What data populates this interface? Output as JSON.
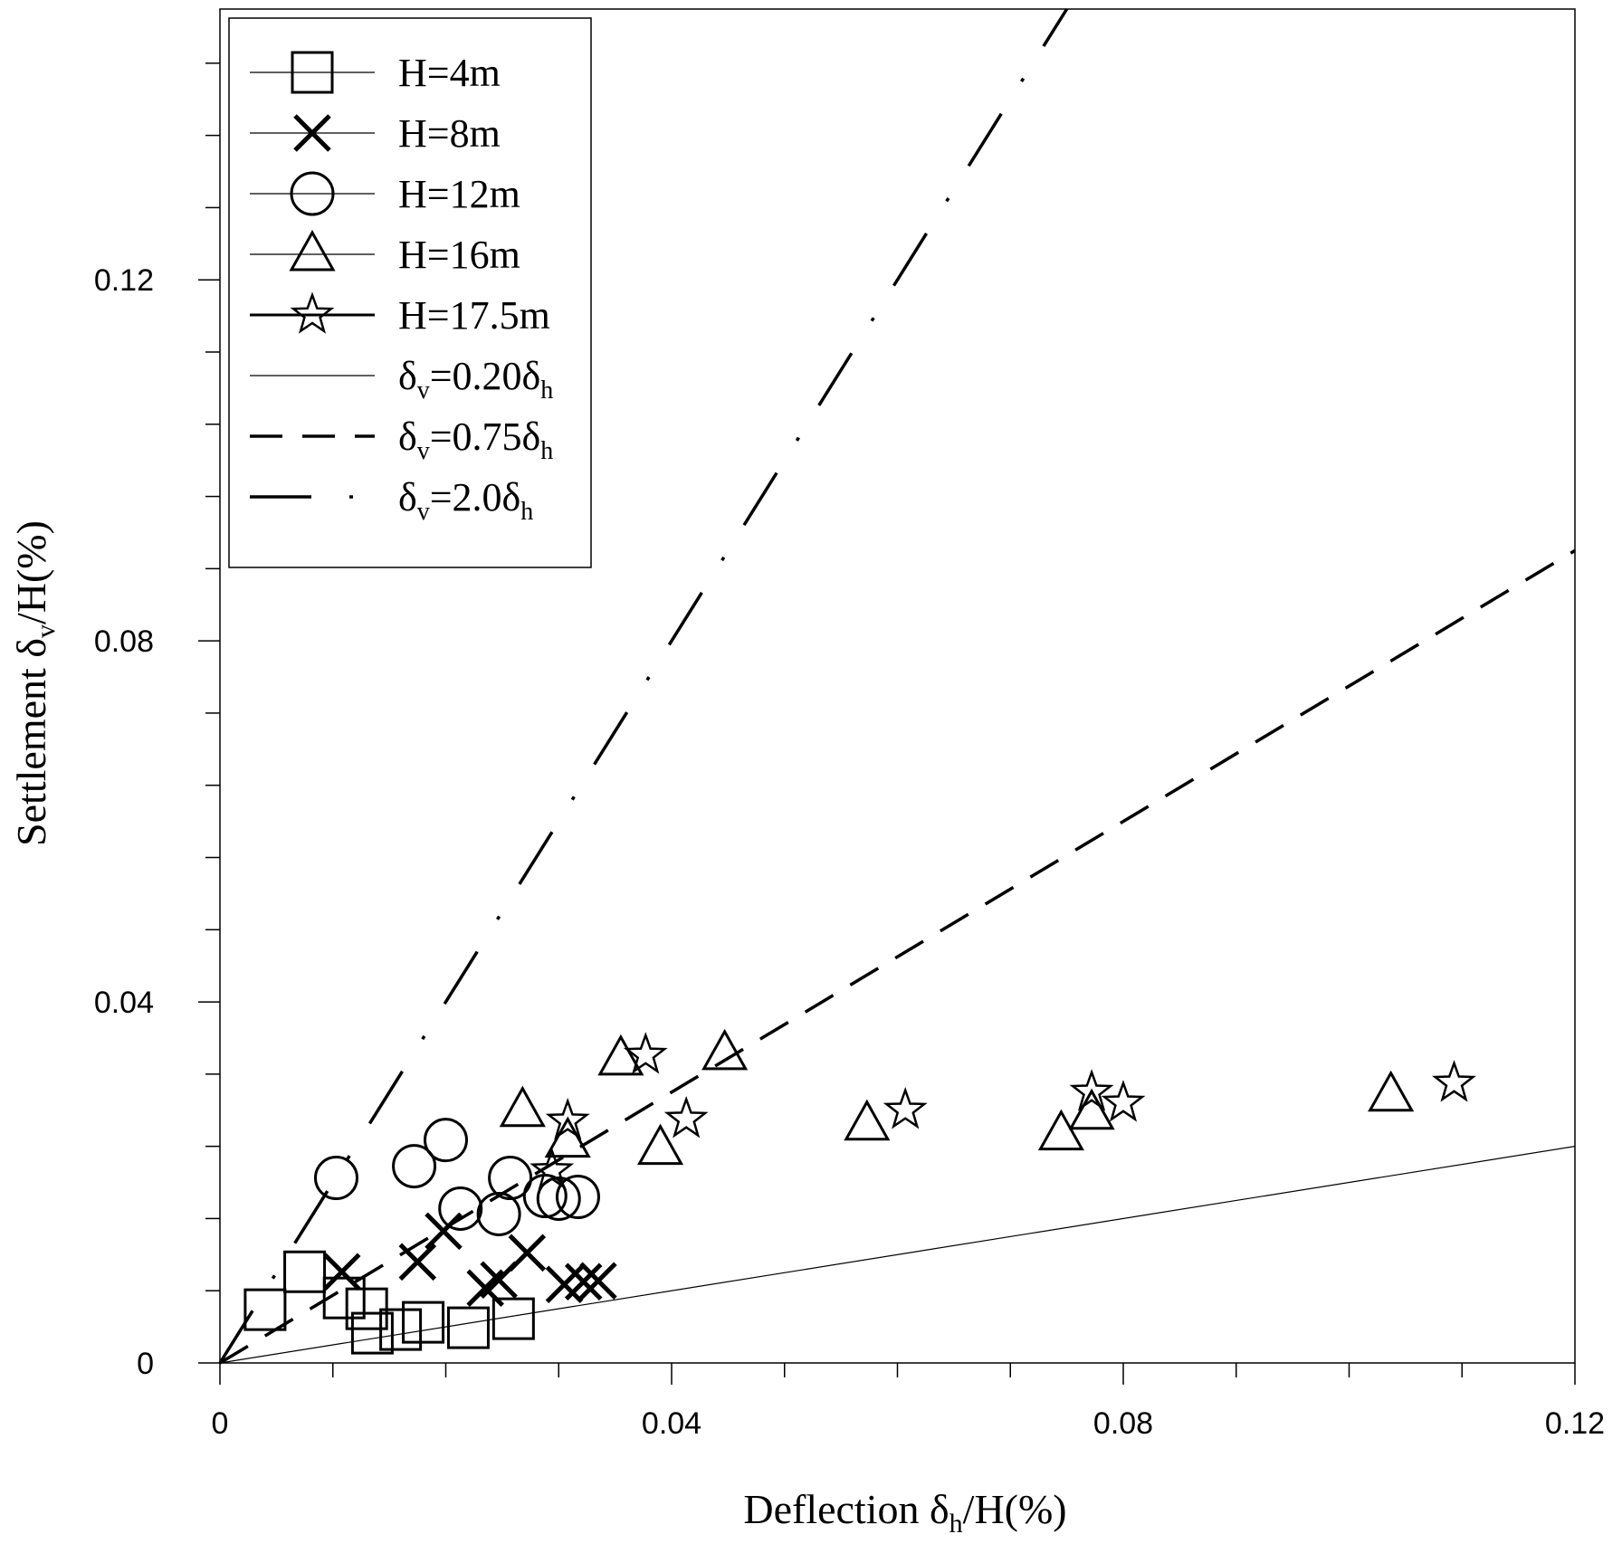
{
  "chart_data": {
    "type": "scatter",
    "title": "",
    "xlabel": {
      "main": "Deflection δ",
      "sub": "h",
      "suffix": "/H(%)"
    },
    "ylabel": {
      "main": "Settlement δ",
      "sub": "v",
      "suffix": "/H(%)"
    },
    "xlim": [
      0,
      0.12
    ],
    "ylim": [
      0,
      0.15
    ],
    "x_ticks": [
      0,
      0.04,
      0.08,
      0.12
    ],
    "x_tick_labels": [
      "0",
      "0.04",
      "0.08",
      "0.12"
    ],
    "y_ticks": [
      0,
      0.04,
      0.08,
      0.12
    ],
    "y_tick_labels": [
      "0",
      "0.04",
      "0.08",
      "0.12"
    ],
    "legend_position": "top-left",
    "series": [
      {
        "name": "H=4m",
        "marker": "square",
        "points": [
          [
            0.004,
            0.0059
          ],
          [
            0.0075,
            0.0101
          ],
          [
            0.011,
            0.0072
          ],
          [
            0.013,
            0.006
          ],
          [
            0.0135,
            0.0033
          ],
          [
            0.016,
            0.0037
          ],
          [
            0.018,
            0.0045
          ],
          [
            0.022,
            0.0039
          ],
          [
            0.026,
            0.0049
          ]
        ]
      },
      {
        "name": "H=8m",
        "marker": "x",
        "points": [
          [
            0.0108,
            0.0101
          ],
          [
            0.0175,
            0.0112
          ],
          [
            0.0198,
            0.0146
          ],
          [
            0.0235,
            0.0083
          ],
          [
            0.0247,
            0.0092
          ],
          [
            0.0272,
            0.0122
          ],
          [
            0.0305,
            0.0087
          ],
          [
            0.0322,
            0.009
          ],
          [
            0.0335,
            0.0091
          ]
        ]
      },
      {
        "name": "H=12m",
        "marker": "circle",
        "points": [
          [
            0.0103,
            0.0205
          ],
          [
            0.0172,
            0.0218
          ],
          [
            0.02,
            0.0247
          ],
          [
            0.0213,
            0.0171
          ],
          [
            0.0247,
            0.0165
          ],
          [
            0.0257,
            0.0205
          ],
          [
            0.0288,
            0.0185
          ],
          [
            0.03,
            0.0182
          ],
          [
            0.0317,
            0.0184
          ]
        ]
      },
      {
        "name": "H=16m",
        "marker": "triangle",
        "points": [
          [
            0.0268,
            0.028
          ],
          [
            0.0308,
            0.0246
          ],
          [
            0.0355,
            0.0337
          ],
          [
            0.039,
            0.0238
          ],
          [
            0.0447,
            0.0343
          ],
          [
            0.0573,
            0.0265
          ],
          [
            0.0745,
            0.0254
          ],
          [
            0.0772,
            0.0277
          ],
          [
            0.1037,
            0.0297
          ]
        ]
      },
      {
        "name": "H=17.5m",
        "marker": "star",
        "points": [
          [
            0.0294,
            0.0213
          ],
          [
            0.0308,
            0.0268
          ],
          [
            0.0377,
            0.0341
          ],
          [
            0.0413,
            0.027
          ],
          [
            0.0607,
            0.028
          ],
          [
            0.0772,
            0.03
          ],
          [
            0.08,
            0.0288
          ],
          [
            0.1093,
            0.031
          ]
        ]
      }
    ],
    "reference_lines": [
      {
        "name": "δv=0.20δh",
        "label": {
          "a": "δ",
          "b": "v",
          "c": "=0.20δ",
          "d": "h"
        },
        "slope": 0.2,
        "style": "solid"
      },
      {
        "name": "δv=0.75δh",
        "label": {
          "a": "δ",
          "b": "v",
          "c": "=0.75δ",
          "d": "h"
        },
        "slope": 0.75,
        "style": "dashed"
      },
      {
        "name": "δv=2.0δh",
        "label": {
          "a": "δ",
          "b": "v",
          "c": "=2.0δ",
          "d": "h"
        },
        "slope": 2.0,
        "style": "long-dash-dot"
      }
    ]
  }
}
